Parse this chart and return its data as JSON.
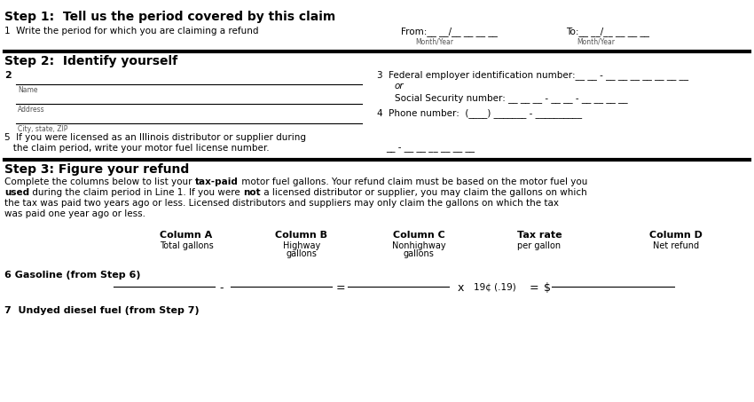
{
  "bg_color": "#ffffff",
  "step1_heading": "Step 1:  Tell us the period covered by this claim",
  "step2_heading": "Step 2:  Identify yourself",
  "step3_heading": "Step 3: Figure your refund",
  "col_a_header": "Column A",
  "col_a_sub": "Total gallons",
  "col_b_header": "Column B",
  "col_b_sub1": "Highway",
  "col_b_sub2": "gallons",
  "col_c_header": "Column C",
  "col_c_sub1": "Nonhighway",
  "col_c_sub2": "gallons",
  "col_tax_header": "Tax rate",
  "col_tax_sub": "per gallon",
  "col_d_header": "Column D",
  "col_d_sub": "Net refund",
  "row6_label": "6 Gasoline (from Step 6)",
  "row7_label": "7  Undyed diesel fuel (from Step 7)",
  "fig_w": 8.5,
  "fig_h": 4.53,
  "dpi": 100
}
